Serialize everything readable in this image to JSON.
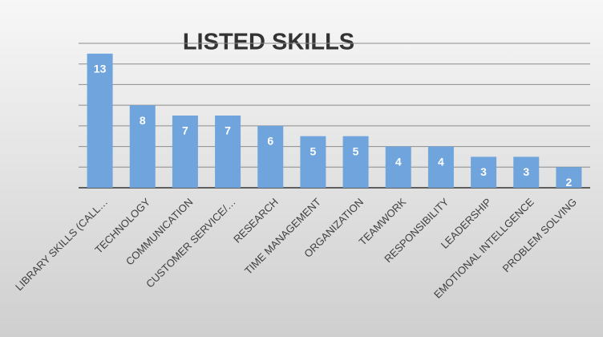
{
  "chart_data": {
    "type": "bar",
    "title": "LISTED SKILLS",
    "categories": [
      "LIBRARY SKILLS (CALL…",
      "TECHNOLOGY",
      "COMMUNICATION",
      "CUSTOMER SERVICE/…",
      "RESEARCH",
      "TIME MANAGEMENT",
      "ORGANIZATION",
      "TEAMWORK",
      "RESPONSIBILITY",
      "LEADERSHIP",
      "EMOTIONAL INTELLGENCE",
      "PROBLEM SOLVING"
    ],
    "values": [
      13,
      8,
      7,
      7,
      6,
      5,
      5,
      4,
      4,
      3,
      3,
      2
    ],
    "color": "#6fa5dc",
    "ylim": [
      0,
      14
    ],
    "yticks": [
      0,
      2,
      4,
      6,
      8,
      10,
      12,
      14
    ],
    "grid": true
  }
}
